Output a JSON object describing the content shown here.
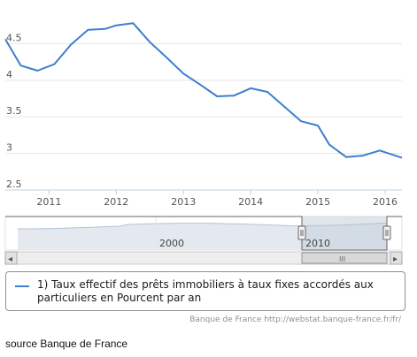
{
  "chart_data": {
    "type": "line",
    "series": [
      {
        "name": "1) Taux effectif des prêts immobiliers à taux fixes accordés aux particuliers en Pourcent par an",
        "color": "#3c7fcd",
        "x": [
          2010.35,
          2010.58,
          2010.83,
          2011.08,
          2011.33,
          2011.58,
          2011.83,
          2012.0,
          2012.25,
          2012.5,
          2012.75,
          2013.0,
          2013.25,
          2013.5,
          2013.75,
          2014.0,
          2014.25,
          2014.5,
          2014.75,
          2015.0,
          2015.17,
          2015.42,
          2015.67,
          2015.92,
          2016.25
        ],
        "values": [
          4.56,
          4.2,
          4.13,
          4.22,
          4.49,
          4.69,
          4.7,
          4.75,
          4.78,
          4.52,
          4.31,
          4.09,
          3.94,
          3.78,
          3.79,
          3.89,
          3.84,
          3.64,
          3.44,
          3.38,
          3.12,
          2.95,
          2.97,
          3.04,
          2.94
        ]
      }
    ],
    "yticks": [
      "2.5",
      "3",
      "3.5",
      "4",
      "4.5"
    ],
    "xticks": [
      "2011",
      "2012",
      "2013",
      "2014",
      "2015",
      "2016"
    ],
    "ylim": [
      2.5,
      5.0
    ],
    "grid": "horizontal",
    "legend": "bottom"
  },
  "navigator": {
    "label_2000": "2000",
    "label_2010": "2010",
    "scroll_left": "◂",
    "scroll_right": "▸",
    "thumb_grip": "III",
    "colors": {
      "area": "#e4e9f0",
      "selected": "#c4cfdd",
      "line": "#b3c2d8"
    }
  },
  "credits": "Banque de France http://webstat.banque-france.fr/fr/",
  "source": "source Banque de France"
}
